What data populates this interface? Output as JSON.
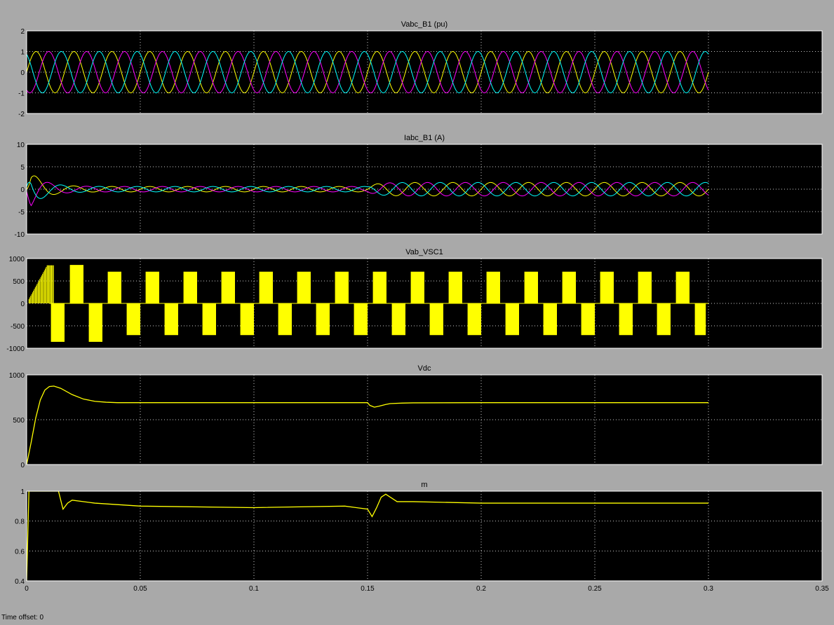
{
  "window": {
    "status_label": "Time offset:",
    "status_value": "0"
  },
  "colors": {
    "background": "#a9a9a9",
    "axes": "#000000",
    "grid": "#ffffff",
    "yellow": "#ffff00",
    "magenta": "#ff00ff",
    "cyan": "#00ffff"
  },
  "chart_data": [
    {
      "type": "line",
      "title": "Vabc_B1 (pu)",
      "xlim": [
        0,
        0.35
      ],
      "ylim": [
        -2,
        2
      ],
      "yticks": [
        "2",
        "1",
        "0",
        "-1",
        "-2"
      ],
      "grid": true,
      "series": [
        {
          "color": "#ffff00",
          "amplitude": 1,
          "phase_deg": 0,
          "frequency_hz": 60,
          "t_end": 0.3
        },
        {
          "color": "#ff00ff",
          "amplitude": 1,
          "phase_deg": -120,
          "frequency_hz": 60,
          "t_end": 0.3
        },
        {
          "color": "#00ffff",
          "amplitude": 1,
          "phase_deg": 120,
          "frequency_hz": 60,
          "t_end": 0.3
        }
      ]
    },
    {
      "type": "line",
      "title": "Iabc_B1 (A)",
      "xlim": [
        0,
        0.35
      ],
      "ylim": [
        -10,
        10
      ],
      "yticks": [
        "10",
        "5",
        "0",
        "-5",
        "-10"
      ],
      "grid": true,
      "transient_peak": 5,
      "amplitude_before_0_15": 0.6,
      "amplitude_after_0_15": 1.5,
      "series": [
        {
          "color": "#ffff00",
          "phase_deg": 0
        },
        {
          "color": "#ff00ff",
          "phase_deg": -120
        },
        {
          "color": "#00ffff",
          "phase_deg": 120
        }
      ]
    },
    {
      "type": "line",
      "title": "Vab_VSC1",
      "xlim": [
        0,
        0.35
      ],
      "ylim": [
        -1000,
        1000
      ],
      "yticks": [
        "1000",
        "500",
        "0",
        "-500",
        "-1000"
      ],
      "grid": true,
      "series": [
        {
          "color": "#ffff00",
          "steady_level": 700,
          "peak_level": 850,
          "t_end": 0.3
        }
      ]
    },
    {
      "type": "line",
      "title": "Vdc",
      "xlim": [
        0,
        0.35
      ],
      "ylim": [
        0,
        1000
      ],
      "yticks": [
        "1000",
        "500",
        "0"
      ],
      "grid": true,
      "series": [
        {
          "color": "#ffff00",
          "x": [
            0,
            0.002,
            0.004,
            0.006,
            0.008,
            0.01,
            0.012,
            0.015,
            0.02,
            0.025,
            0.03,
            0.035,
            0.04,
            0.1,
            0.15,
            0.151,
            0.153,
            0.155,
            0.158,
            0.16,
            0.165,
            0.17,
            0.2,
            0.25,
            0.3
          ],
          "y": [
            0,
            250,
            520,
            720,
            830,
            870,
            875,
            850,
            780,
            730,
            705,
            695,
            690,
            690,
            690,
            660,
            640,
            650,
            670,
            680,
            685,
            688,
            690,
            690,
            690
          ]
        }
      ]
    },
    {
      "type": "line",
      "title": "m",
      "xlim": [
        0,
        0.35
      ],
      "ylim": [
        0.4,
        1
      ],
      "yticks": [
        "1",
        "0.8",
        "0.6",
        "0.4"
      ],
      "xticks": [
        "0",
        "0.05",
        "0.1",
        "0.15",
        "0.2",
        "0.25",
        "0.3",
        "0.35"
      ],
      "grid": true,
      "series": [
        {
          "color": "#ffff00",
          "x": [
            0,
            0.001,
            0.002,
            0.014,
            0.016,
            0.018,
            0.02,
            0.03,
            0.05,
            0.1,
            0.14,
            0.15,
            0.152,
            0.154,
            0.156,
            0.158,
            0.16,
            0.163,
            0.17,
            0.2,
            0.25,
            0.3
          ],
          "y": [
            0.4,
            1.0,
            1.0,
            1.0,
            0.88,
            0.92,
            0.94,
            0.92,
            0.9,
            0.89,
            0.9,
            0.88,
            0.83,
            0.89,
            0.96,
            0.98,
            0.96,
            0.93,
            0.93,
            0.92,
            0.92,
            0.92
          ]
        }
      ]
    }
  ]
}
